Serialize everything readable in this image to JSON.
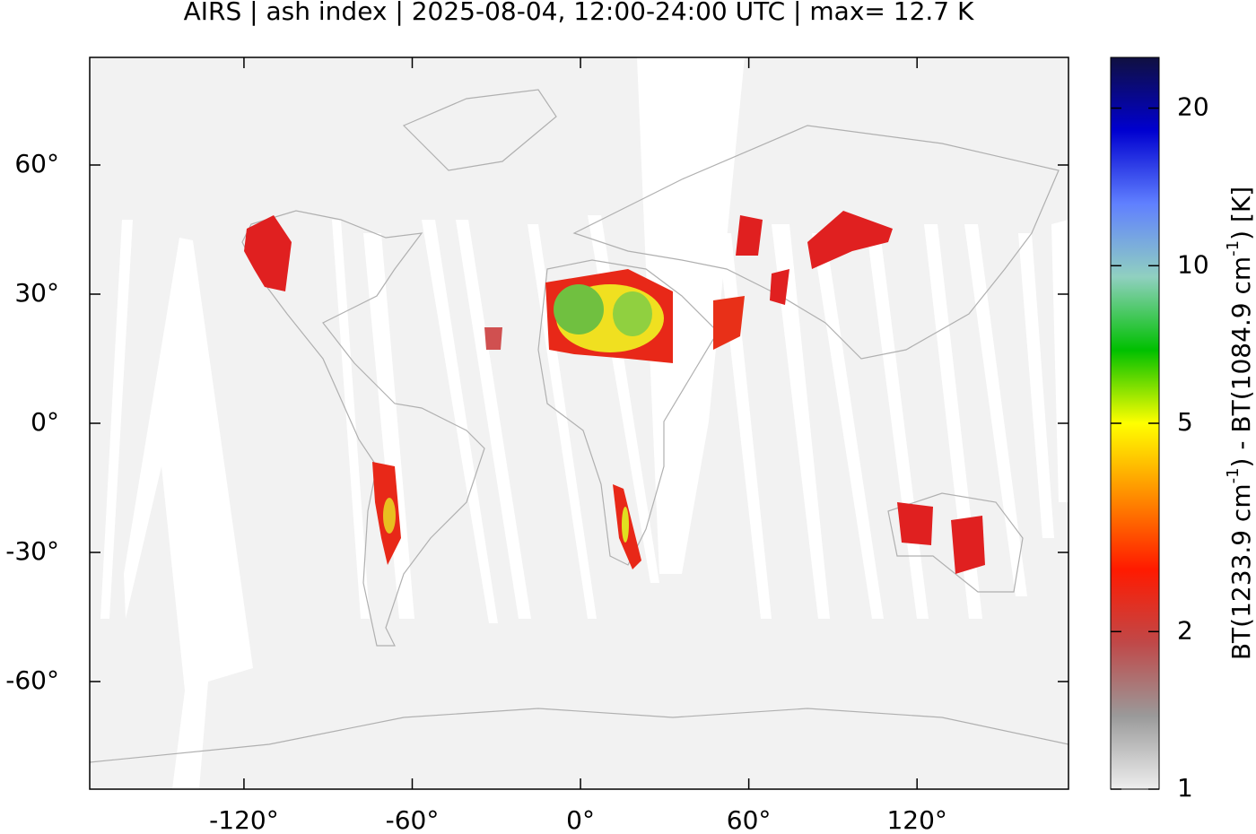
{
  "chart_data": {
    "type": "map",
    "title": "AIRS | ash index | 2025-08-04, 12:00-24:00 UTC | max= 12.7 K",
    "xlim": [
      -175,
      174
    ],
    "ylim": [
      -85,
      85
    ],
    "xticks": [
      {
        "value": -120,
        "label": "-120°"
      },
      {
        "value": -60,
        "label": "-60°"
      },
      {
        "value": 0,
        "label": "0°"
      },
      {
        "value": 60,
        "label": "60°"
      },
      {
        "value": 120,
        "label": "120°"
      }
    ],
    "yticks": [
      {
        "value": 60,
        "label": "60°"
      },
      {
        "value": 30,
        "label": "30°"
      },
      {
        "value": 0,
        "label": "0°"
      },
      {
        "value": -30,
        "label": "-30°"
      },
      {
        "value": -60,
        "label": "-60°"
      }
    ],
    "colorbar": {
      "scale": "log",
      "lim": [
        1,
        25
      ],
      "ticks": [
        1,
        2,
        5,
        10,
        20
      ],
      "label_parts": [
        "BT(1233.9 cm",
        "-1",
        ") - BT(1084.9 cm",
        "-1",
        ") [K]"
      ],
      "colors": [
        "#eeeeee",
        "#9a9a9a",
        "#c04848",
        "#ff1a00",
        "#ff8c00",
        "#ffff00",
        "#00c000",
        "#90d0c0",
        "#6080ff",
        "#0000d0",
        "#101040"
      ]
    }
  }
}
